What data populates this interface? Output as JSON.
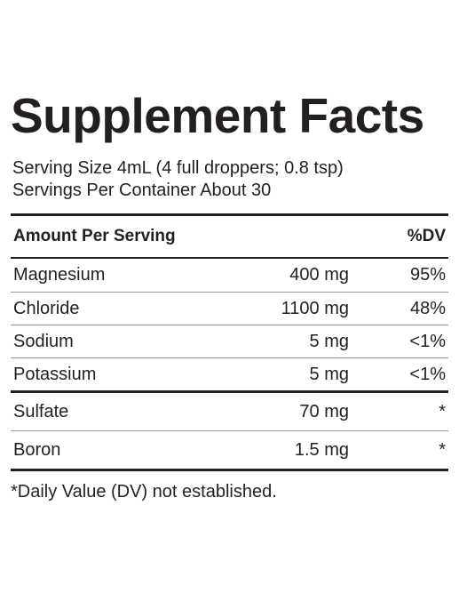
{
  "title": "Supplement Facts",
  "serving_size": "Serving Size 4mL (4 full droppers; 0.8 tsp)",
  "servings_per_container": "Servings Per Container About 30",
  "table": {
    "header": [
      "Amount Per Serving",
      "%DV"
    ],
    "groups": [
      [
        [
          "Magnesium",
          "400 mg",
          "95%"
        ],
        [
          "Chloride",
          "1100 mg",
          "48%"
        ],
        [
          "Sodium",
          "5 mg",
          "<1%"
        ],
        [
          "Potassium",
          "5 mg",
          "<1%"
        ]
      ],
      [
        [
          "Sulfate",
          "70 mg",
          "*"
        ],
        [
          "Boron",
          "1.5 mg",
          "*"
        ]
      ]
    ]
  },
  "footnote": "*Daily Value (DV) not established."
}
